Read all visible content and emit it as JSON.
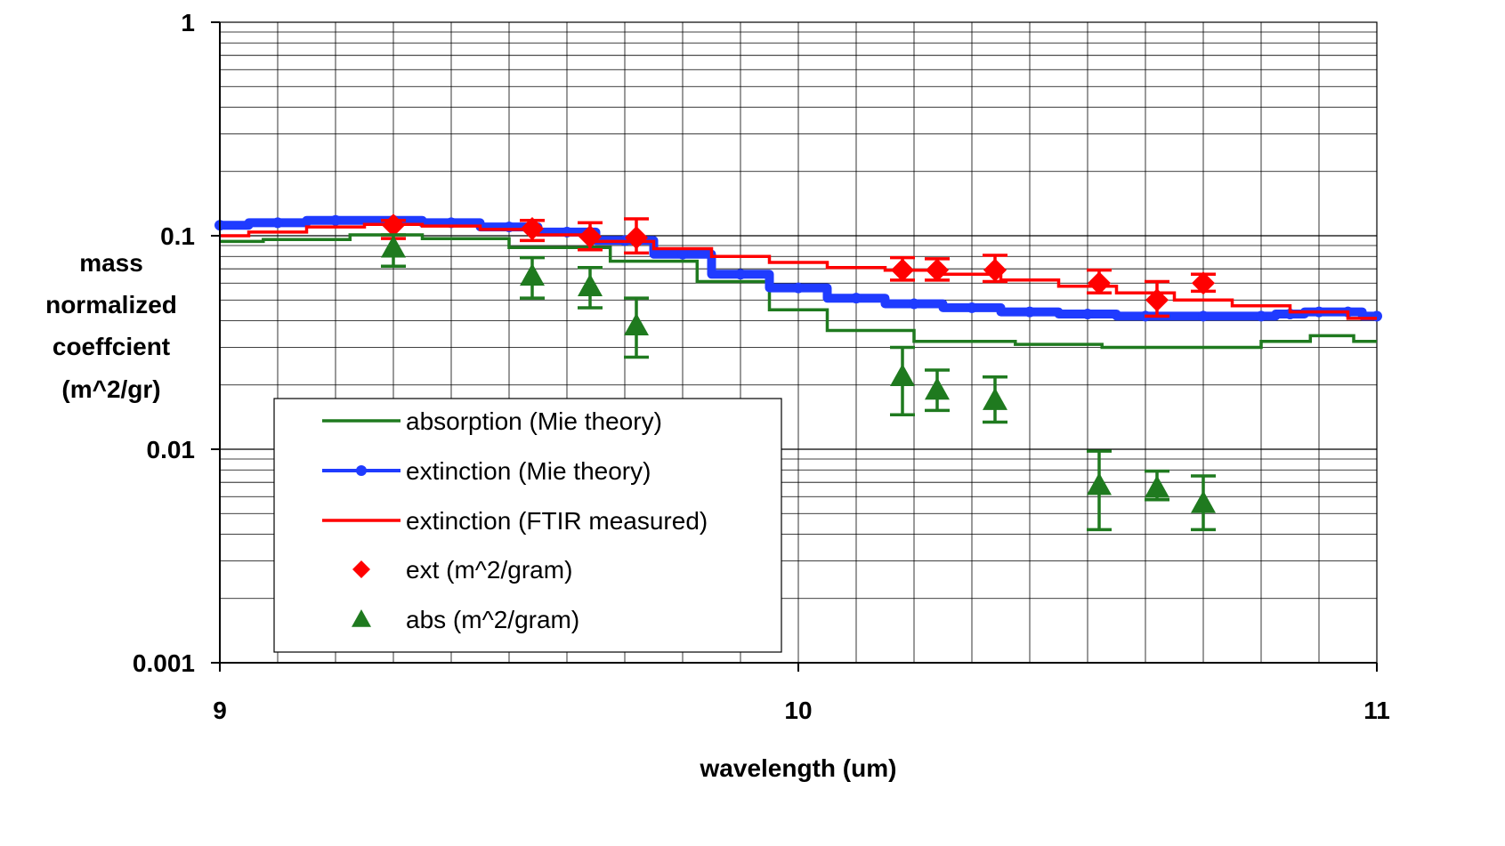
{
  "chart_data": {
    "type": "line",
    "xlabel": "wavelength (um)",
    "ylabel_lines": [
      "mass",
      "normalized",
      "coeffcient",
      "(m^2/gr)"
    ],
    "x_range": [
      9,
      11
    ],
    "y_range": [
      0.001,
      1
    ],
    "y_scale": "log",
    "grid": true,
    "legend_position": "bottom-left",
    "x_tick_labels": [
      "9",
      "10",
      "11"
    ],
    "y_tick_labels": [
      "1",
      "0.1",
      "0.01",
      "0.001"
    ],
    "x_ticks": [
      9,
      10,
      11
    ],
    "y_ticks": [
      1,
      0.1,
      0.01,
      0.001
    ],
    "series": [
      {
        "name": "absorption (Mie theory)",
        "kind": "line",
        "color": "#1f7a1f",
        "x": [
          9.0,
          9.15,
          9.3,
          9.4,
          9.6,
          9.75,
          9.9,
          10.0,
          10.1,
          10.3,
          10.45,
          10.6,
          10.75,
          10.85,
          10.92,
          11.0
        ],
        "y": [
          0.094,
          0.096,
          0.101,
          0.097,
          0.088,
          0.076,
          0.061,
          0.045,
          0.036,
          0.032,
          0.031,
          0.03,
          0.03,
          0.032,
          0.034,
          0.032
        ]
      },
      {
        "name": "extinction (Mie theory)",
        "kind": "line-markers",
        "color": "#1f3bff",
        "x": [
          9.0,
          9.1,
          9.2,
          9.3,
          9.4,
          9.5,
          9.6,
          9.7,
          9.8,
          9.9,
          10.0,
          10.1,
          10.2,
          10.3,
          10.4,
          10.5,
          10.6,
          10.7,
          10.8,
          10.85,
          10.9,
          10.95,
          11.0
        ],
        "y": [
          0.112,
          0.115,
          0.118,
          0.118,
          0.115,
          0.11,
          0.104,
          0.095,
          0.082,
          0.066,
          0.057,
          0.051,
          0.048,
          0.046,
          0.044,
          0.043,
          0.042,
          0.042,
          0.042,
          0.043,
          0.044,
          0.044,
          0.042
        ]
      },
      {
        "name": "extinction (FTIR measured)",
        "kind": "line",
        "color": "#ff0000",
        "x": [
          9.0,
          9.1,
          9.2,
          9.3,
          9.4,
          9.5,
          9.6,
          9.7,
          9.8,
          9.9,
          10.0,
          10.1,
          10.2,
          10.3,
          10.4,
          10.5,
          10.6,
          10.7,
          10.8,
          10.9,
          11.0
        ],
        "y": [
          0.1,
          0.104,
          0.11,
          0.113,
          0.111,
          0.107,
          0.101,
          0.094,
          0.087,
          0.08,
          0.075,
          0.071,
          0.069,
          0.066,
          0.062,
          0.058,
          0.054,
          0.05,
          0.047,
          0.044,
          0.041
        ]
      },
      {
        "name": "ext (m^2/gram)",
        "kind": "points",
        "marker": "diamond",
        "color": "#ff0000",
        "x": [
          9.3,
          9.54,
          9.64,
          9.72,
          10.18,
          10.24,
          10.34,
          10.52,
          10.62,
          10.7
        ],
        "y": [
          0.112,
          0.108,
          0.099,
          0.098,
          0.069,
          0.069,
          0.069,
          0.06,
          0.05,
          0.06
        ],
        "y_low": [
          0.097,
          0.095,
          0.086,
          0.083,
          0.062,
          0.062,
          0.061,
          0.054,
          0.042,
          0.055
        ],
        "y_high": [
          0.118,
          0.118,
          0.115,
          0.12,
          0.079,
          0.078,
          0.081,
          0.069,
          0.061,
          0.066
        ]
      },
      {
        "name": "abs (m^2/gram)",
        "kind": "points",
        "marker": "triangle",
        "color": "#1f7a1f",
        "x": [
          9.3,
          9.54,
          9.64,
          9.72,
          10.18,
          10.24,
          10.34,
          10.52,
          10.62,
          10.7
        ],
        "y": [
          0.088,
          0.065,
          0.058,
          0.038,
          0.022,
          0.019,
          0.017,
          0.0068,
          0.0066,
          0.0056
        ],
        "y_low": [
          0.072,
          0.051,
          0.046,
          0.027,
          0.0145,
          0.0152,
          0.0134,
          0.0042,
          0.0058,
          0.0042
        ],
        "y_high": [
          0.101,
          0.079,
          0.071,
          0.051,
          0.03,
          0.0235,
          0.0218,
          0.0098,
          0.0079,
          0.0075
        ]
      }
    ],
    "legend": [
      {
        "label": "absorption (Mie theory)",
        "series": 0
      },
      {
        "label": "extinction (Mie theory)",
        "series": 1
      },
      {
        "label": "extinction (FTIR measured)",
        "series": 2
      },
      {
        "label": "ext (m^2/gram)",
        "series": 3
      },
      {
        "label": "abs (m^2/gram)",
        "series": 4
      }
    ]
  }
}
